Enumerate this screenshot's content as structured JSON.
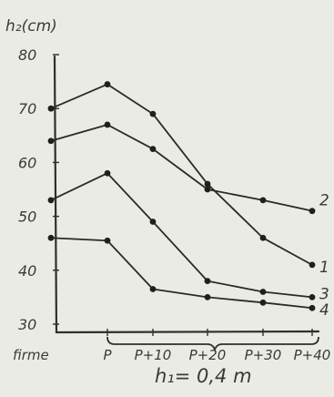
{
  "chart_data": {
    "type": "line",
    "ylabel": "h₂(cm)",
    "ylim": [
      30,
      80
    ],
    "y_ticks": [
      30,
      40,
      50,
      60,
      70,
      80
    ],
    "y_tick_labels": [
      "30",
      "40",
      "50",
      "60",
      "70",
      "80"
    ],
    "categories": [
      "firme",
      "P",
      "P+10",
      "P+20",
      "P+30",
      "P+40"
    ],
    "series": [
      {
        "name": "1",
        "values": [
          70,
          74.5,
          69,
          56,
          46,
          41
        ]
      },
      {
        "name": "2",
        "values": [
          64,
          67,
          62.5,
          55,
          53,
          51
        ]
      },
      {
        "name": "3",
        "values": [
          53,
          58,
          49,
          38,
          36,
          35
        ]
      },
      {
        "name": "4",
        "values": [
          46,
          45.5,
          36.5,
          35,
          34,
          33
        ]
      }
    ],
    "annotation": "h₁= 0,4 m",
    "grid": false
  }
}
